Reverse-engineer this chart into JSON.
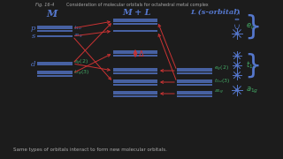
{
  "bg_color": "#1a1a1a",
  "title_fig": "Fig. 16-4",
  "title_desc": "Consideration of molecular orbitals for octahedral metal complex",
  "header_M": "M",
  "header_ML": "M + L",
  "header_L": "L (s-orbital)",
  "footer": "Same types of orbitals interact to form new molecular orbitals.",
  "blue": "#5577cc",
  "red": "#cc3333",
  "green": "#44aa66",
  "white": "#dddddd",
  "gray": "#aaaaaa"
}
